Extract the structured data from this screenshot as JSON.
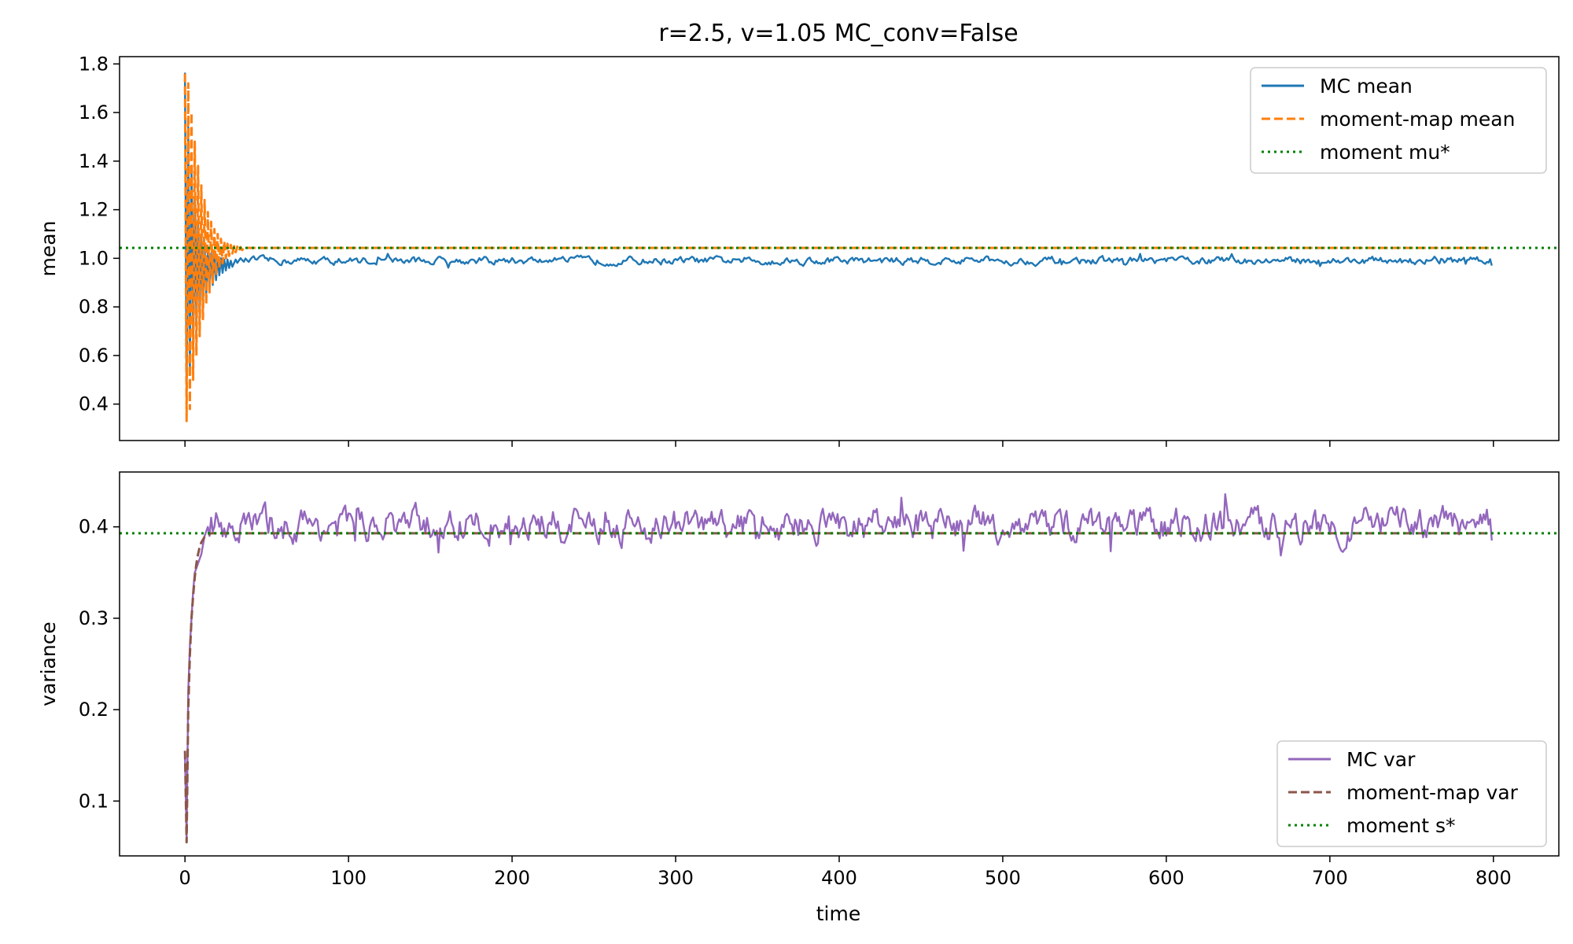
{
  "chart_data": [
    {
      "type": "line",
      "title": "r=2.5, v=1.05   MC_conv=False",
      "xlabel": "",
      "ylabel": "mean",
      "xlim": [
        -40,
        840
      ],
      "ylim": [
        0.25,
        1.83
      ],
      "xticks": [
        0,
        100,
        200,
        300,
        400,
        500,
        600,
        700,
        800
      ],
      "show_xtick_labels": false,
      "yticks": [
        0.4,
        0.6,
        0.8,
        1.0,
        1.2,
        1.4,
        1.6,
        1.8
      ],
      "ytick_labels": [
        "0.4",
        "0.6",
        "0.8",
        "1.0",
        "1.2",
        "1.4",
        "1.6",
        "1.8"
      ],
      "grid": false,
      "legend_position": "upper-right",
      "series": [
        {
          "name": "MC mean",
          "style": "solid",
          "color": "#1f77b4",
          "x_range": [
            0,
            799
          ],
          "early_values": [
            1.764,
            0.35,
            1.55,
            0.52,
            1.38,
            0.63,
            1.25,
            0.7,
            1.16,
            0.76,
            1.1,
            0.8,
            1.06,
            0.84,
            1.03,
            0.87,
            1.02,
            0.89,
            1.01,
            0.91,
            1.0,
            0.93,
            1.0,
            0.94,
            0.995,
            0.95,
            0.995,
            0.96,
            0.99,
            0.965
          ],
          "steady_mean": 0.99,
          "noise_amplitude": 0.012,
          "last_value": 0.97
        },
        {
          "name": "moment-map mean",
          "style": "dashed",
          "color": "#ff7f0e",
          "x_range": [
            0,
            799
          ],
          "early_values": [
            1.76,
            0.33,
            1.72,
            0.38,
            1.6,
            0.5,
            1.48,
            0.6,
            1.38,
            0.68,
            1.3,
            0.75,
            1.24,
            0.81,
            1.19,
            0.86,
            1.15,
            0.9,
            1.12,
            0.93,
            1.1,
            0.96,
            1.08,
            0.98,
            1.07,
            1.0,
            1.06,
            1.01,
            1.055,
            1.02,
            1.05,
            1.025,
            1.048,
            1.03,
            1.046,
            1.034
          ],
          "steady_value": 1.043
        },
        {
          "name": "moment mu*",
          "style": "dotted",
          "color": "#008000",
          "value": 1.043
        }
      ]
    },
    {
      "type": "line",
      "title": "",
      "xlabel": "time",
      "ylabel": "variance",
      "xlim": [
        -40,
        840
      ],
      "ylim": [
        0.04,
        0.46
      ],
      "xticks": [
        0,
        100,
        200,
        300,
        400,
        500,
        600,
        700,
        800
      ],
      "xtick_labels": [
        "0",
        "100",
        "200",
        "300",
        "400",
        "500",
        "600",
        "700",
        "800"
      ],
      "yticks": [
        0.1,
        0.2,
        0.3,
        0.4
      ],
      "ytick_labels": [
        "0.1",
        "0.2",
        "0.3",
        "0.4"
      ],
      "grid": false,
      "legend_position": "lower-right",
      "series": [
        {
          "name": "MC var",
          "style": "solid",
          "color": "#9467bd",
          "x_range": [
            0,
            799
          ],
          "early_values": [
            0.15,
            0.06,
            0.22,
            0.27,
            0.3,
            0.33,
            0.35,
            0.355,
            0.36,
            0.365,
            0.37,
            0.38,
            0.39,
            0.395,
            0.4,
            0.39,
            0.41,
            0.395,
            0.4,
            0.415
          ],
          "steady_mean": 0.402,
          "noise_amplitude": 0.014,
          "last_value": 0.385
        },
        {
          "name": "moment-map var",
          "style": "dashed",
          "color": "#8c564b",
          "x_range": [
            0,
            799
          ],
          "early_values": [
            0.155,
            0.055,
            0.2,
            0.26,
            0.3,
            0.325,
            0.345,
            0.36,
            0.37,
            0.378,
            0.383,
            0.386,
            0.389,
            0.39,
            0.391,
            0.392
          ],
          "steady_value": 0.393
        },
        {
          "name": "moment s*",
          "style": "dotted",
          "color": "#008000",
          "value": 0.393
        }
      ]
    }
  ]
}
